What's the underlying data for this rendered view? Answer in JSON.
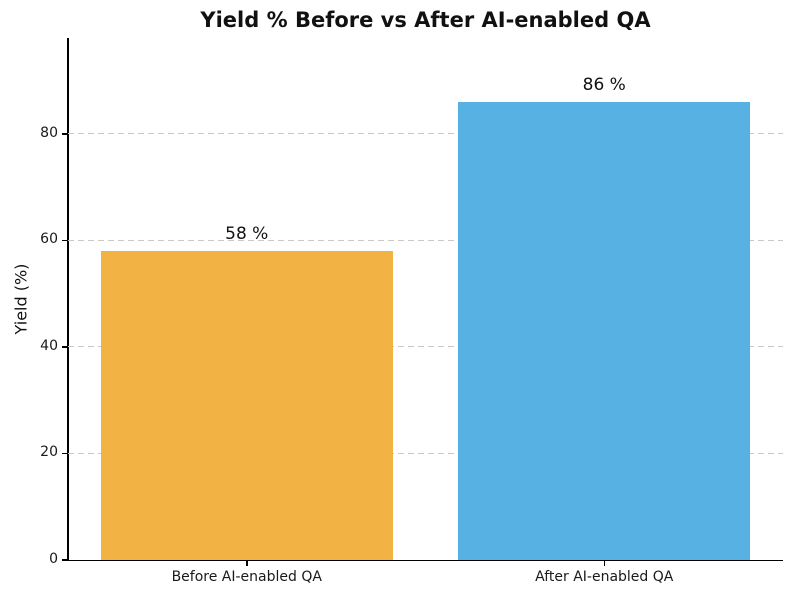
{
  "figure": {
    "title": "Yield % Before vs After AI-enabled QA"
  },
  "colors": {
    "background": "#ffffff",
    "title_text": "#111111",
    "axis": "#000000",
    "grid": "#c9c9c9",
    "tick_text": "#1a1a1a",
    "bar_before": "#f2b344",
    "bar_after": "#57b2e3"
  },
  "chart_data": {
    "type": "bar",
    "title": "Yield % Before vs After AI-enabled QA",
    "categories": [
      "Before AI-enabled QA",
      "After AI-enabled QA"
    ],
    "values": [
      58,
      86
    ],
    "value_labels": [
      "58 %",
      "86 %"
    ],
    "bar_colors": [
      "#f2b344",
      "#57b2e3"
    ],
    "xlabel": "",
    "ylabel": "Yield (%)",
    "ylim": [
      0,
      98
    ],
    "yticks": [
      0,
      20,
      40,
      60,
      80
    ],
    "grid": "horizontal dashed",
    "legend_position": "none"
  }
}
